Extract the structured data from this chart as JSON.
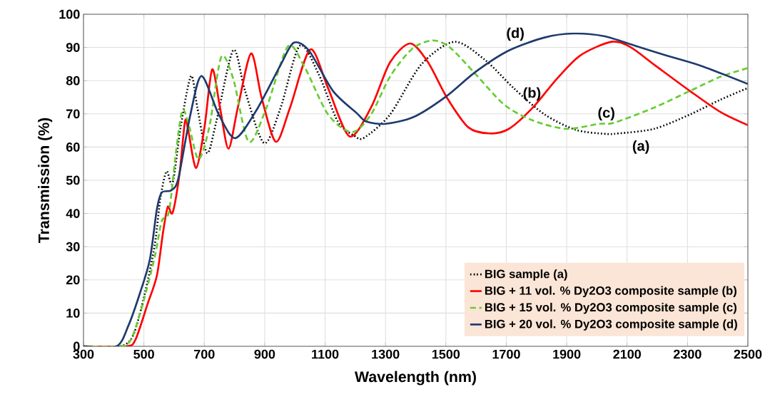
{
  "chart_data": {
    "type": "line",
    "xlabel": "Wavelength (nm)",
    "ylabel": "Transmission (%)",
    "xlim": [
      300,
      2500
    ],
    "ylim": [
      0,
      100
    ],
    "xticks": [
      300,
      500,
      700,
      900,
      1100,
      1300,
      1500,
      1700,
      1900,
      2100,
      2300,
      2500
    ],
    "yticks": [
      0,
      10,
      20,
      30,
      40,
      50,
      60,
      70,
      80,
      90,
      100
    ],
    "grid": true,
    "legend": "bottom right",
    "series": [
      {
        "name": "BIG sample (a)",
        "color": "#000000",
        "line_style": "dotted",
        "x": [
          300,
          420,
          465,
          504,
          536,
          555,
          575,
          595,
          622,
          656,
          677,
          709,
          740,
          796,
          835,
          898,
          953,
          1016,
          1079,
          1142,
          1197,
          1229,
          1315,
          1418,
          1528,
          1630,
          1725,
          1827,
          1930,
          2024,
          2071,
          2190,
          2308,
          2410,
          2500
        ],
        "values": [
          0,
          0,
          3.4,
          16.3,
          30.6,
          44.8,
          52.7,
          49.1,
          66.2,
          81.4,
          71.9,
          58.2,
          67.7,
          89.2,
          76.9,
          61.2,
          71.9,
          90.5,
          81.9,
          67.7,
          63.4,
          62.8,
          69.8,
          84.8,
          91.7,
          86.2,
          77.7,
          69.8,
          65.2,
          64.0,
          64.1,
          65.5,
          69.8,
          74.3,
          77.8
        ]
      },
      {
        "name": "BIG + 11 vol. % Dy2O3 composite sample (b)",
        "color": "#ff0000",
        "line_style": "solid",
        "x": [
          300,
          441,
          472,
          512,
          543,
          563,
          579,
          595,
          618,
          636,
          647,
          673,
          701,
          726,
          752,
          780,
          811,
          855,
          890,
          937,
          984,
          1051,
          1110,
          1181,
          1252,
          1315,
          1382,
          1441,
          1504,
          1575,
          1646,
          1709,
          1788,
          1867,
          1945,
          2048,
          2111,
          2190,
          2308,
          2410,
          2500
        ],
        "values": [
          0,
          0,
          2,
          12.7,
          21.3,
          34.1,
          42,
          40.2,
          52,
          67.7,
          64.9,
          53.7,
          66.2,
          83.4,
          71.9,
          59.5,
          71.9,
          88.2,
          74.8,
          61.6,
          71.9,
          89.4,
          77.7,
          63.2,
          71.9,
          85.5,
          91.2,
          85.5,
          74.8,
          65.9,
          64.1,
          65.5,
          71.9,
          80.5,
          87.6,
          91.7,
          90.1,
          84.8,
          76.9,
          70.5,
          66.6
        ]
      },
      {
        "name": "BIG + 15 vol. % Dy2O3 composite sample (c)",
        "color": "#66cc33",
        "line_style": "dashed",
        "x": [
          300,
          417,
          457,
          496,
          536,
          559,
          583,
          607,
          628,
          650,
          681,
          717,
          756,
          796,
          847,
          906,
          977,
          1032,
          1110,
          1189,
          1252,
          1315,
          1386,
          1453,
          1512,
          1599,
          1694,
          1788,
          1898,
          2008,
          2056,
          2190,
          2308,
          2410,
          2500
        ],
        "values": [
          0,
          0,
          2,
          12.7,
          27,
          37.7,
          40.5,
          59.1,
          71.2,
          66.2,
          56.3,
          66.2,
          87.1,
          80.5,
          61.6,
          71.9,
          90.3,
          84.1,
          69.8,
          64.5,
          69.8,
          81.2,
          89.4,
          92.1,
          90.1,
          81.9,
          72.7,
          68,
          65.5,
          67,
          67.3,
          71.9,
          76.9,
          81.2,
          83.8
        ]
      },
      {
        "name": "BIG + 20 vol. % Dy2O3 composite sample (d)",
        "color": "#1f3a6e",
        "line_style": "solid",
        "x": [
          300,
          409,
          449,
          488,
          520,
          543,
          559,
          591,
          614,
          654,
          691,
          748,
          803,
          874,
          953,
          996,
          1047,
          1126,
          1205,
          1236,
          1300,
          1394,
          1500,
          1599,
          1709,
          1827,
          1922,
          2024,
          2127,
          2229,
          2347,
          2500
        ],
        "values": [
          0,
          0,
          6.3,
          16.3,
          26.3,
          41.3,
          46.3,
          47,
          50.5,
          69.8,
          81.4,
          69.8,
          62.7,
          71.3,
          84.8,
          91.4,
          89,
          76.9,
          70.2,
          67.7,
          67,
          69.1,
          75.2,
          82.7,
          89.1,
          93,
          94.2,
          93.4,
          90.5,
          87.6,
          84.4,
          79
        ]
      }
    ],
    "annotations": [
      "(a)",
      "(b)",
      "(c)",
      "(d)"
    ]
  }
}
